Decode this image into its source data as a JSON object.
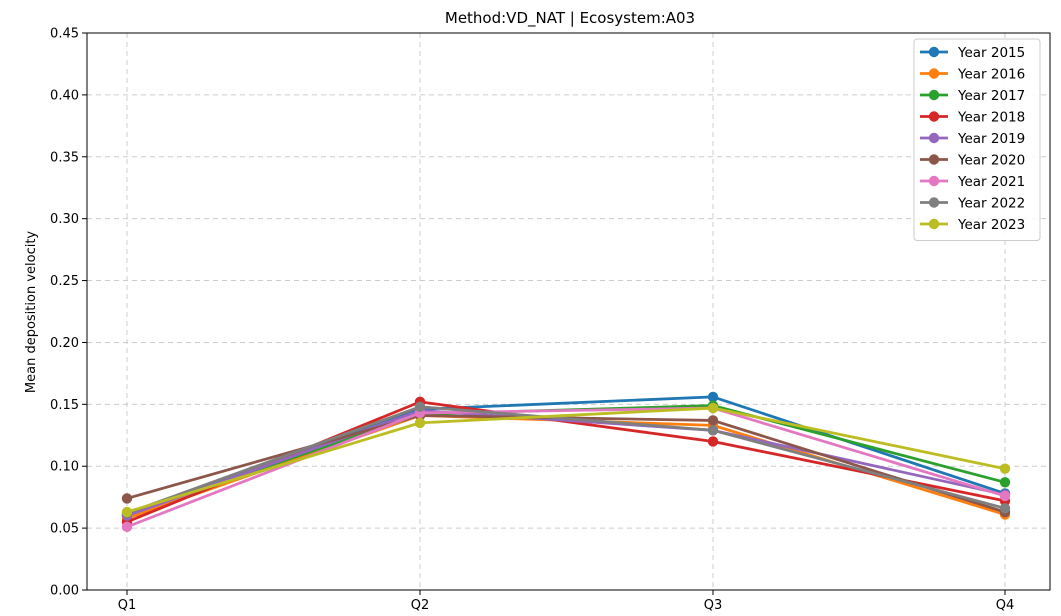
{
  "chart_data": {
    "type": "line",
    "title": "Method:VD_NAT | Ecosystem:A03",
    "xlabel": "",
    "ylabel": "Mean deposition velocity",
    "categories": [
      "Q1",
      "Q2",
      "Q3",
      "Q4"
    ],
    "ylim": [
      0,
      0.45
    ],
    "yticks": [
      "0.00",
      "0.05",
      "0.10",
      "0.15",
      "0.20",
      "0.25",
      "0.30",
      "0.35",
      "0.40",
      "0.45"
    ],
    "grid": true,
    "legend_position": "top-right",
    "series": [
      {
        "name": "Year 2015",
        "color": "#1f77b4",
        "values": [
          0.061,
          0.146,
          0.156,
          0.078
        ]
      },
      {
        "name": "Year 2016",
        "color": "#ff7f0e",
        "values": [
          0.058,
          0.141,
          0.133,
          0.061
        ]
      },
      {
        "name": "Year 2017",
        "color": "#2ca02c",
        "values": [
          0.061,
          0.142,
          0.149,
          0.087
        ]
      },
      {
        "name": "Year 2018",
        "color": "#d62728",
        "values": [
          0.055,
          0.152,
          0.12,
          0.072
        ]
      },
      {
        "name": "Year 2019",
        "color": "#9467bd",
        "values": [
          0.06,
          0.145,
          0.129,
          0.077
        ]
      },
      {
        "name": "Year 2020",
        "color": "#8c564b",
        "values": [
          0.074,
          0.141,
          0.137,
          0.063
        ]
      },
      {
        "name": "Year 2021",
        "color": "#e377c2",
        "values": [
          0.051,
          0.143,
          0.147,
          0.076
        ]
      },
      {
        "name": "Year 2022",
        "color": "#7f7f7f",
        "values": [
          0.062,
          0.148,
          0.129,
          0.066
        ]
      },
      {
        "name": "Year 2023",
        "color": "#bcbd22",
        "values": [
          0.063,
          0.135,
          0.147,
          0.098
        ]
      }
    ]
  }
}
